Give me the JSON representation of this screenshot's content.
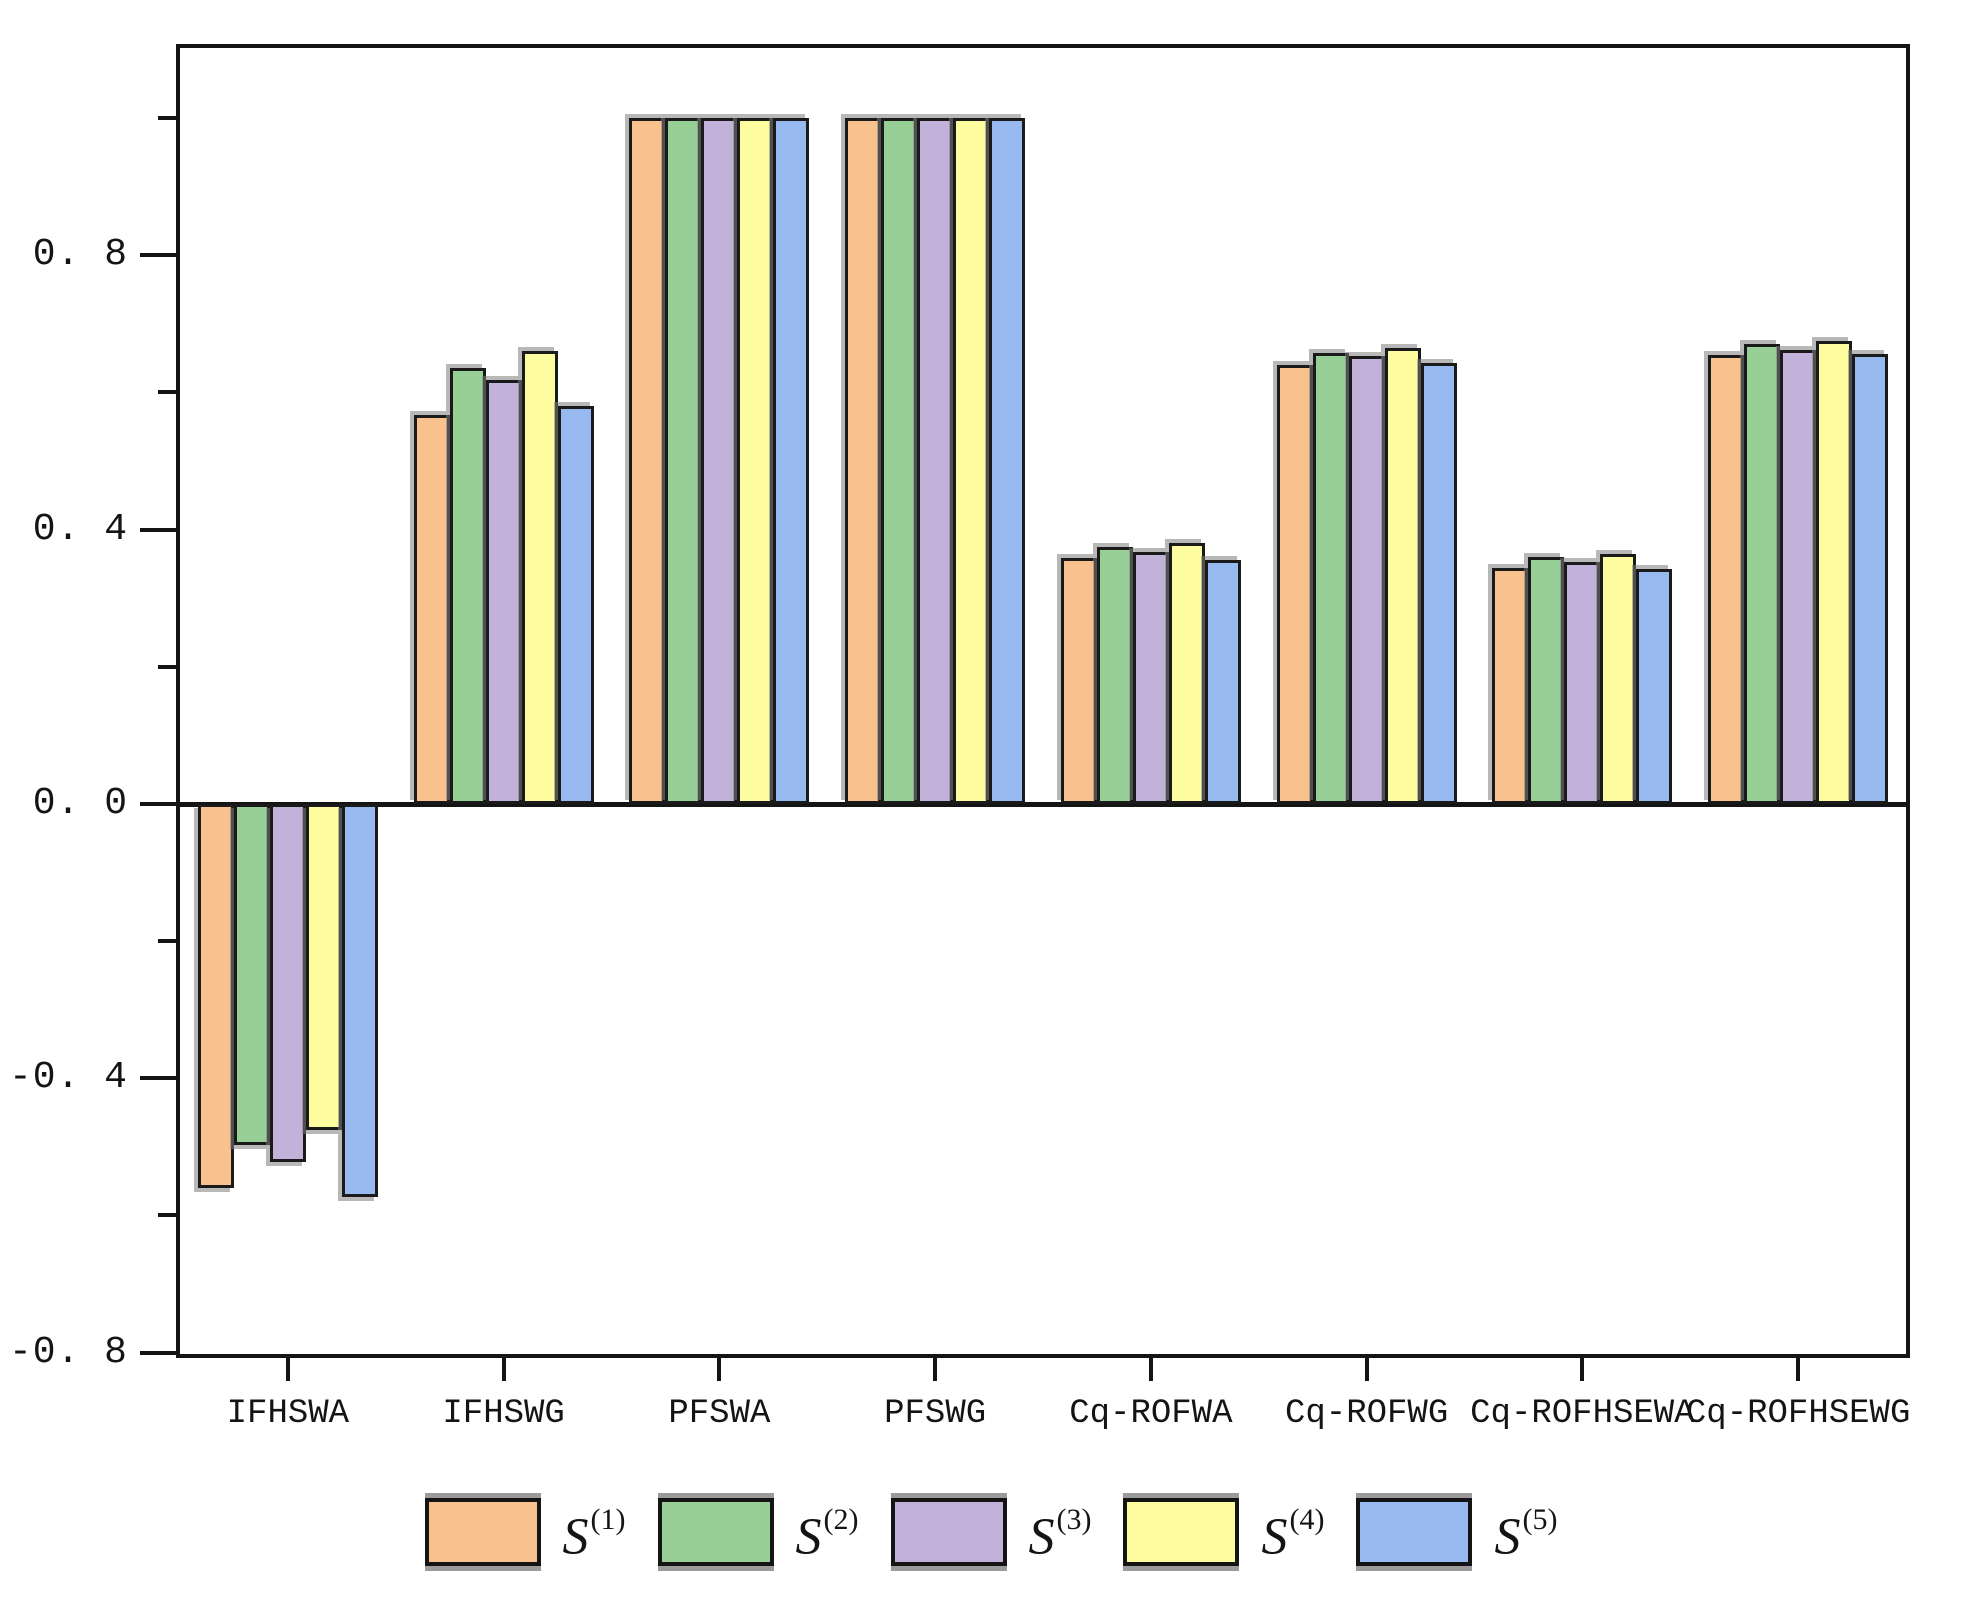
{
  "figure": {
    "background": "#ffffff",
    "frame_color": "#141414"
  },
  "chart_data": {
    "type": "bar",
    "title": "",
    "xlabel": "",
    "ylabel": "",
    "categories": [
      "IFHSWA",
      "IFHSWG",
      "PFSWA",
      "PFSWG",
      "Cq-ROFWA",
      "Cq-ROFWG",
      "Cq-ROFHSEWA",
      "Cq-ROFHSEWG"
    ],
    "series": [
      {
        "name": "S",
        "sup": "(1)",
        "color": "#F8C18E",
        "values": [
          -0.56,
          0.567,
          1.0,
          1.0,
          0.359,
          0.64,
          0.344,
          0.654
        ]
      },
      {
        "name": "S",
        "sup": "(2)",
        "color": "#97CF97",
        "values": [
          -0.498,
          0.636,
          1.0,
          1.0,
          0.375,
          0.658,
          0.36,
          0.67
        ]
      },
      {
        "name": "S",
        "sup": "(3)",
        "color": "#C2B1D8",
        "values": [
          -0.522,
          0.618,
          1.0,
          1.0,
          0.367,
          0.653,
          0.353,
          0.662
        ]
      },
      {
        "name": "S",
        "sup": "(4)",
        "color": "#FDFD9F",
        "values": [
          -0.475,
          0.66,
          1.0,
          1.0,
          0.38,
          0.665,
          0.364,
          0.675
        ]
      },
      {
        "name": "S",
        "sup": "(5)",
        "color": "#97B9EF",
        "values": [
          -0.573,
          0.58,
          1.0,
          1.0,
          0.356,
          0.643,
          0.343,
          0.656
        ]
      }
    ],
    "ylim": [
      -0.802,
      1.102
    ],
    "y_major_ticks": [
      {
        "value": 0.8,
        "label": "0. 8"
      },
      {
        "value": 0.4,
        "label": "0. 4"
      },
      {
        "value": 0.0,
        "label": "0. 0"
      },
      {
        "value": -0.4,
        "label": "-0. 4"
      },
      {
        "value": -0.8,
        "label": "-0. 8"
      }
    ],
    "y_minor_ticks": [
      1.0,
      0.6,
      0.2,
      -0.2,
      -0.6
    ],
    "grid": false,
    "legend_position": "bottom",
    "bar_edge_color": "#1a1a1a",
    "shadow_color": "#7d7d7d"
  }
}
